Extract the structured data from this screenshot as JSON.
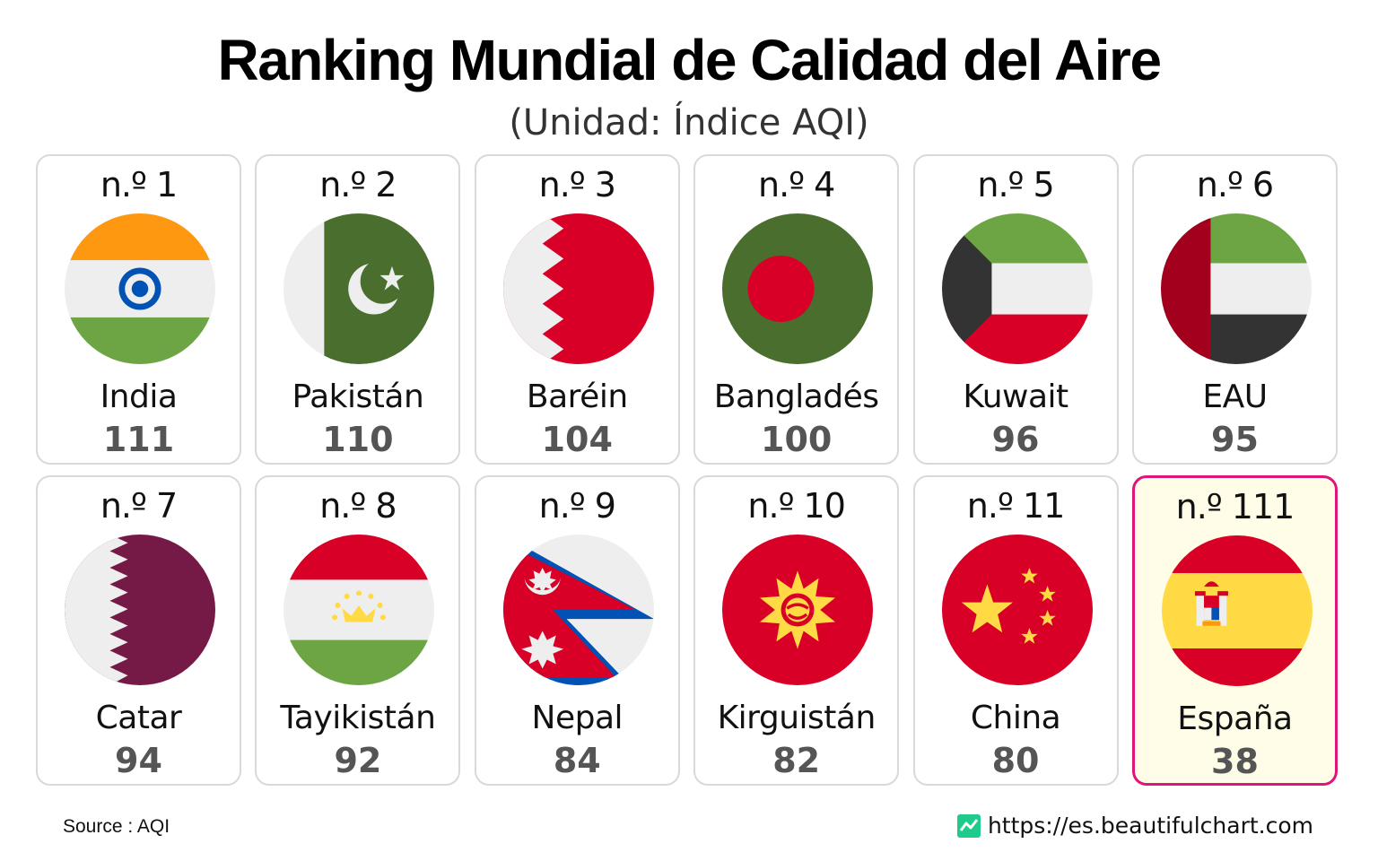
{
  "chart_data": {
    "type": "table",
    "title": "Ranking Mundial de Calidad del Aire",
    "subtitle": "(Unidad: Índice AQI)",
    "items": [
      {
        "rank": "n.º 1",
        "country": "India",
        "value": "111",
        "flag": "india-flag-icon",
        "highlight": false
      },
      {
        "rank": "n.º 2",
        "country": "Pakistán",
        "value": "110",
        "flag": "pakistan-flag-icon",
        "highlight": false
      },
      {
        "rank": "n.º 3",
        "country": "Baréin",
        "value": "104",
        "flag": "bahrain-flag-icon",
        "highlight": false
      },
      {
        "rank": "n.º 4",
        "country": "Bangladés",
        "value": "100",
        "flag": "bangladesh-flag-icon",
        "highlight": false
      },
      {
        "rank": "n.º 5",
        "country": "Kuwait",
        "value": "96",
        "flag": "kuwait-flag-icon",
        "highlight": false
      },
      {
        "rank": "n.º 6",
        "country": "EAU",
        "value": "95",
        "flag": "uae-flag-icon",
        "highlight": false
      },
      {
        "rank": "n.º 7",
        "country": "Catar",
        "value": "94",
        "flag": "qatar-flag-icon",
        "highlight": false
      },
      {
        "rank": "n.º 8",
        "country": "Tayikistán",
        "value": "92",
        "flag": "tajikistan-flag-icon",
        "highlight": false
      },
      {
        "rank": "n.º 9",
        "country": "Nepal",
        "value": "84",
        "flag": "nepal-flag-icon",
        "highlight": false
      },
      {
        "rank": "n.º 10",
        "country": "Kirguistán",
        "value": "82",
        "flag": "kyrgyzstan-flag-icon",
        "highlight": false
      },
      {
        "rank": "n.º 11",
        "country": "China",
        "value": "80",
        "flag": "china-flag-icon",
        "highlight": false
      },
      {
        "rank": "n.º 111",
        "country": "España",
        "value": "38",
        "flag": "spain-flag-icon",
        "highlight": true
      }
    ],
    "highlight_color": "#e0157a",
    "highlight_background": "#fffde8"
  },
  "footer": {
    "source": "Source : AQI",
    "site": "https://es.beautifulchart.com",
    "site_icon": "chart-logo-icon"
  }
}
